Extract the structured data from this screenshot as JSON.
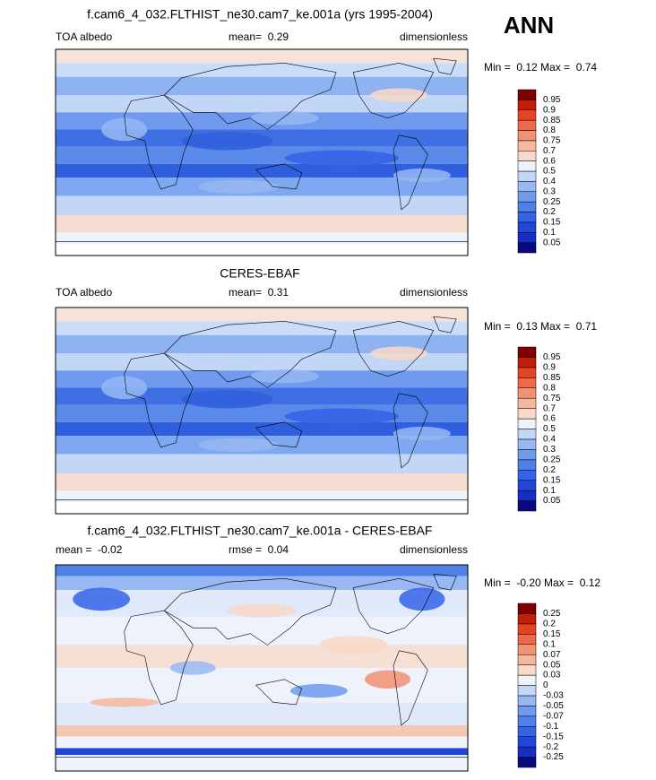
{
  "season": "ANN",
  "panels": [
    {
      "title": "f.cam6_4_032.FLTHIST_ne30.cam7_ke.001a (yrs 1995-2004)",
      "left": "TOA albedo",
      "center": "mean=  0.29",
      "right": "dimensionless",
      "min_max": "Min =  0.12 Max =  0.74",
      "colorbar": {
        "levels": [
          0.05,
          0.1,
          0.15,
          0.2,
          0.25,
          0.3,
          0.4,
          0.5,
          0.6,
          0.7,
          0.75,
          0.8,
          0.85,
          0.9,
          0.95
        ],
        "colors": [
          "#0a0a80",
          "#1530c0",
          "#2247d8",
          "#3463e6",
          "#4f7fe8",
          "#6f9aee",
          "#97b8f3",
          "#c2d6f8",
          "#eef2fb",
          "#f8d8c8",
          "#f5b79e",
          "#f19272",
          "#ec6a48",
          "#e4441f",
          "#c41e08",
          "#7f0000"
        ]
      }
    },
    {
      "title": "CERES-EBAF",
      "left": "TOA albedo",
      "center": "mean=  0.31",
      "right": "dimensionless",
      "min_max": "Min =  0.13 Max =  0.71",
      "colorbar": {
        "levels": [
          0.05,
          0.1,
          0.15,
          0.2,
          0.25,
          0.3,
          0.4,
          0.5,
          0.6,
          0.7,
          0.75,
          0.8,
          0.85,
          0.9,
          0.95
        ],
        "colors": [
          "#0a0a80",
          "#1530c0",
          "#2247d8",
          "#3463e6",
          "#4f7fe8",
          "#6f9aee",
          "#97b8f3",
          "#c2d6f8",
          "#eef2fb",
          "#f8d8c8",
          "#f5b79e",
          "#f19272",
          "#ec6a48",
          "#e4441f",
          "#c41e08",
          "#7f0000"
        ]
      }
    },
    {
      "title": "f.cam6_4_032.FLTHIST_ne30.cam7_ke.001a - CERES-EBAF",
      "left": "mean =  -0.02",
      "center": "rmse =  0.04",
      "right": "dimensionless",
      "min_max": "Min =  -0.20 Max =  0.12",
      "colorbar": {
        "levels": [
          -0.25,
          -0.2,
          -0.15,
          -0.1,
          -0.07,
          -0.05,
          -0.03,
          0,
          0.03,
          0.05,
          0.07,
          0.1,
          0.15,
          0.2,
          0.25
        ],
        "colors": [
          "#0a0a80",
          "#1530c0",
          "#2247d8",
          "#3463e6",
          "#4f7fe8",
          "#6f9aee",
          "#97b8f3",
          "#c2d6f8",
          "#eef2fb",
          "#f8d8c8",
          "#f5b79e",
          "#f19272",
          "#ec6a48",
          "#e4441f",
          "#c41e08",
          "#7f0000"
        ]
      }
    }
  ]
}
